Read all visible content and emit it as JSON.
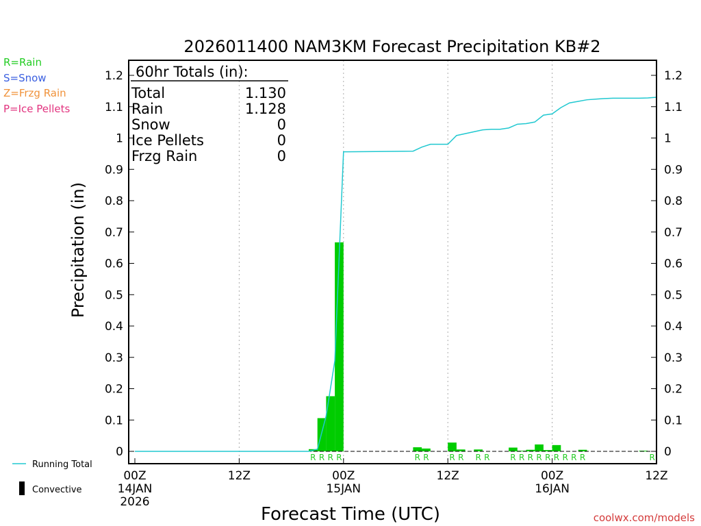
{
  "legend_ptype": [
    {
      "label": "R=Rain",
      "color": "#22cc22"
    },
    {
      "label": "S=Snow",
      "color": "#3a5fe0"
    },
    {
      "label": "Z=Frzg Rain",
      "color": "#f0923a"
    },
    {
      "label": "P=Ice Pellets",
      "color": "#e2337f"
    }
  ],
  "legend_bottom": {
    "running_total": "Running Total",
    "convective": "Convective"
  },
  "credit": "coolwx.com/models",
  "totals_box": {
    "header": "60hr Totals (in):",
    "rows": [
      {
        "label": "Total",
        "value": "1.130"
      },
      {
        "label": "Rain",
        "value": "1.128"
      },
      {
        "label": "Snow",
        "value": "0"
      },
      {
        "label": "Ice Pellets",
        "value": "0"
      },
      {
        "label": "Frzg Rain",
        "value": "0"
      }
    ]
  },
  "colors": {
    "bar": "#00cc00",
    "running_total": "#20c8d0",
    "rain_marker": "#22cc22",
    "grid": "#aaaaaa"
  },
  "chart_data": {
    "type": "bar",
    "title": "2026011400 NAM3KM Forecast Precipitation KB#2",
    "xlabel": "Forecast Time (UTC)",
    "ylabel": "Precipitation (in)",
    "ylim": [
      -0.04,
      1.24
    ],
    "xlim_hours": [
      0,
      60
    ],
    "y_ticks": [
      0,
      0.1,
      0.2,
      0.3,
      0.4,
      0.5,
      0.6,
      0.7,
      0.8,
      0.9,
      1,
      1.1,
      1.2
    ],
    "y_tick_labels": [
      "0",
      "0.1",
      "0.2",
      "0.3",
      "0.4",
      "0.5",
      "0.6",
      "0.7",
      "0.8",
      "0.9",
      "1",
      "1.1",
      "1.2"
    ],
    "x_ticks": [
      {
        "hour": 0,
        "lines": [
          "00Z",
          "14JAN",
          "2026"
        ]
      },
      {
        "hour": 12,
        "lines": [
          "12Z"
        ]
      },
      {
        "hour": 24,
        "lines": [
          "00Z",
          "15JAN"
        ]
      },
      {
        "hour": 36,
        "lines": [
          "12Z"
        ]
      },
      {
        "hour": 48,
        "lines": [
          "00Z",
          "16JAN"
        ]
      },
      {
        "hour": 60,
        "lines": [
          "12Z"
        ]
      }
    ],
    "bar_width_hours": 1,
    "bars": [
      {
        "hour": 21,
        "value": 0.007
      },
      {
        "hour": 22,
        "value": 0.106
      },
      {
        "hour": 23,
        "value": 0.176
      },
      {
        "hour": 24,
        "value": 0.667
      },
      {
        "hour": 33,
        "value": 0.013
      },
      {
        "hour": 34,
        "value": 0.009
      },
      {
        "hour": 37,
        "value": 0.028
      },
      {
        "hour": 38,
        "value": 0.006
      },
      {
        "hour": 40,
        "value": 0.006
      },
      {
        "hour": 44,
        "value": 0.012
      },
      {
        "hour": 45,
        "value": 0.002
      },
      {
        "hour": 46,
        "value": 0.005
      },
      {
        "hour": 47,
        "value": 0.022
      },
      {
        "hour": 48,
        "value": 0.004
      },
      {
        "hour": 49,
        "value": 0.02
      },
      {
        "hour": 52,
        "value": 0.005
      },
      {
        "hour": 59,
        "value": 0.002
      }
    ],
    "ptype_markers": [
      {
        "hour": 21,
        "label": "R"
      },
      {
        "hour": 22,
        "label": "R"
      },
      {
        "hour": 23,
        "label": "R"
      },
      {
        "hour": 24,
        "label": "R"
      },
      {
        "hour": 33,
        "label": "R"
      },
      {
        "hour": 34,
        "label": "R"
      },
      {
        "hour": 37,
        "label": "R"
      },
      {
        "hour": 38,
        "label": "R"
      },
      {
        "hour": 40,
        "label": "R"
      },
      {
        "hour": 41,
        "label": "R"
      },
      {
        "hour": 44,
        "label": "R"
      },
      {
        "hour": 45,
        "label": "R"
      },
      {
        "hour": 46,
        "label": "R"
      },
      {
        "hour": 47,
        "label": "R"
      },
      {
        "hour": 48,
        "label": "R"
      },
      {
        "hour": 49,
        "label": "R"
      },
      {
        "hour": 50,
        "label": "R"
      },
      {
        "hour": 51,
        "label": "R"
      },
      {
        "hour": 52,
        "label": "R"
      },
      {
        "hour": 60,
        "label": "R"
      }
    ],
    "running_total": {
      "name": "Running Total",
      "points": [
        [
          0,
          0
        ],
        [
          20,
          0
        ],
        [
          21,
          0.007
        ],
        [
          22,
          0.113
        ],
        [
          23,
          0.289
        ],
        [
          24,
          0.956
        ],
        [
          32,
          0.958
        ],
        [
          33,
          0.971
        ],
        [
          34,
          0.98
        ],
        [
          35,
          0.98
        ],
        [
          36,
          0.98
        ],
        [
          37,
          1.008
        ],
        [
          38,
          1.014
        ],
        [
          39,
          1.02
        ],
        [
          40,
          1.026
        ],
        [
          41,
          1.028
        ],
        [
          42,
          1.028
        ],
        [
          43,
          1.032
        ],
        [
          44,
          1.044
        ],
        [
          45,
          1.046
        ],
        [
          46,
          1.051
        ],
        [
          47,
          1.073
        ],
        [
          48,
          1.077
        ],
        [
          49,
          1.097
        ],
        [
          50,
          1.112
        ],
        [
          51,
          1.117
        ],
        [
          52,
          1.122
        ],
        [
          53,
          1.124
        ],
        [
          54,
          1.126
        ],
        [
          55,
          1.127
        ],
        [
          56,
          1.127
        ],
        [
          57,
          1.127
        ],
        [
          58,
          1.127
        ],
        [
          59,
          1.128
        ],
        [
          60,
          1.13
        ]
      ]
    }
  }
}
